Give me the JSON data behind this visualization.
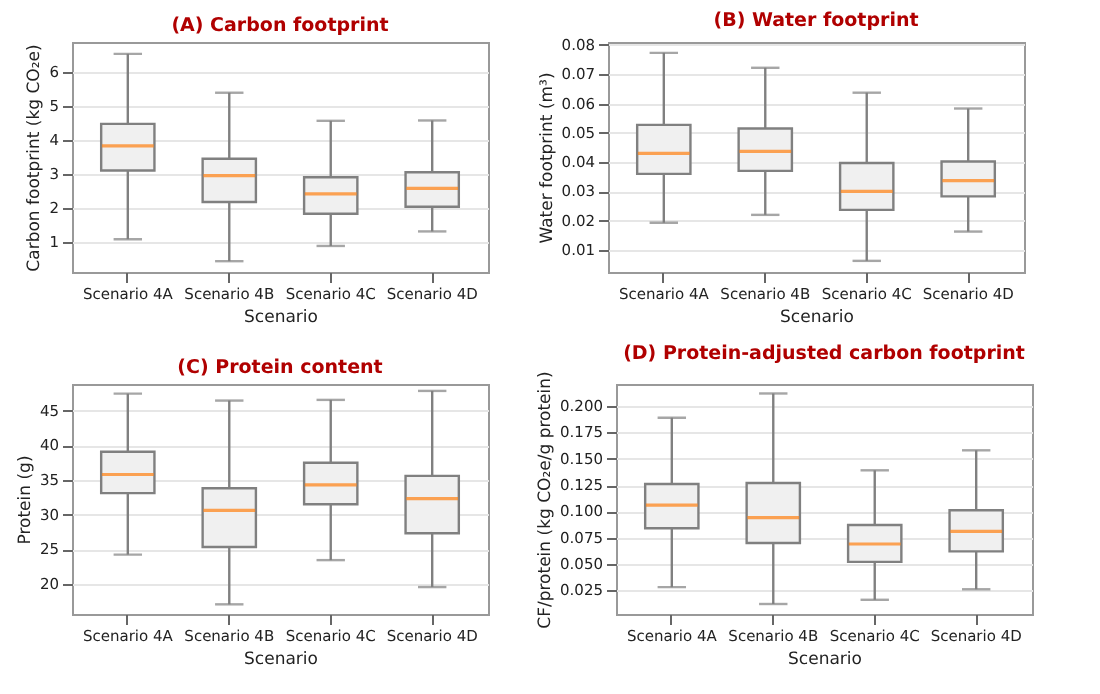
{
  "chart_data": [
    {
      "type": "box",
      "title": "(A) Carbon footprint",
      "xlabel": "Scenario",
      "ylabel": "Carbon footprint (kg CO₂e)",
      "categories": [
        "Scenario 4A",
        "Scenario 4B",
        "Scenario 4C",
        "Scenario 4D"
      ],
      "ylim": [
        0.1,
        6.9
      ],
      "yticks": [
        1,
        2,
        3,
        4,
        5,
        6
      ],
      "grid": "y",
      "series": [
        {
          "color": "#f0f0f0",
          "boxes": [
            {
              "low": 1.07,
              "q1": 3.1,
              "median": 3.83,
              "q3": 4.48,
              "high": 6.55
            },
            {
              "low": 0.42,
              "q1": 2.17,
              "median": 2.95,
              "q3": 3.45,
              "high": 5.4
            },
            {
              "low": 0.87,
              "q1": 1.82,
              "median": 2.41,
              "q3": 2.9,
              "high": 4.57
            },
            {
              "low": 1.3,
              "q1": 2.03,
              "median": 2.57,
              "q3": 3.05,
              "high": 4.58
            }
          ]
        }
      ]
    },
    {
      "type": "box",
      "title": "(B) Water footprint",
      "xlabel": "Scenario",
      "ylabel": "Water footprint (m³)",
      "categories": [
        "Scenario 4A",
        "Scenario 4B",
        "Scenario 4C",
        "Scenario 4D"
      ],
      "ylim": [
        0.0025,
        0.081
      ],
      "yticks": [
        0.01,
        0.02,
        0.03,
        0.04,
        0.05,
        0.06,
        0.07,
        0.08
      ],
      "grid": "y",
      "series": [
        {
          "color": "#f0f0f0",
          "boxes": [
            {
              "low": 0.0193,
              "q1": 0.036,
              "median": 0.043,
              "q3": 0.0527,
              "high": 0.0773
            },
            {
              "low": 0.022,
              "q1": 0.037,
              "median": 0.0437,
              "q3": 0.0515,
              "high": 0.0722
            },
            {
              "low": 0.0063,
              "q1": 0.0237,
              "median": 0.03,
              "q3": 0.0397,
              "high": 0.0637
            },
            {
              "low": 0.0163,
              "q1": 0.0283,
              "median": 0.0337,
              "q3": 0.0402,
              "high": 0.0583
            }
          ]
        }
      ]
    },
    {
      "type": "box",
      "title": "(C) Protein content",
      "xlabel": "Scenario",
      "ylabel": "Protein (g)",
      "categories": [
        "Scenario 4A",
        "Scenario 4B",
        "Scenario 4C",
        "Scenario 4D"
      ],
      "ylim": [
        15.6,
        48.9
      ],
      "yticks": [
        20,
        25,
        30,
        35,
        40,
        45
      ],
      "grid": "y",
      "series": [
        {
          "color": "#f0f0f0",
          "boxes": [
            {
              "low": 24.2,
              "q1": 33.1,
              "median": 35.8,
              "q3": 39.1,
              "high": 47.5
            },
            {
              "low": 17.0,
              "q1": 25.3,
              "median": 30.6,
              "q3": 33.8,
              "high": 46.5
            },
            {
              "low": 23.4,
              "q1": 31.5,
              "median": 34.3,
              "q3": 37.5,
              "high": 46.6
            },
            {
              "low": 19.5,
              "q1": 27.3,
              "median": 32.3,
              "q3": 35.6,
              "high": 47.9
            }
          ]
        }
      ]
    },
    {
      "type": "box",
      "title": "(D) Protein-adjusted carbon footprint",
      "xlabel": "Scenario",
      "ylabel": "CF/protein (kg CO₂e/g protein)",
      "categories": [
        "Scenario 4A",
        "Scenario 4B",
        "Scenario 4C",
        "Scenario 4D"
      ],
      "ylim": [
        0.0025,
        0.221
      ],
      "yticks": [
        0.025,
        {
          "value": 0.05,
          "label": "0.050"
        },
        0.075,
        {
          "value": 0.1,
          "label": "0.100"
        },
        0.125,
        {
          "value": 0.15,
          "label": "0.150"
        },
        0.175,
        {
          "value": 0.2,
          "label": "0.200"
        }
      ],
      "grid": "y",
      "series": [
        {
          "color": "#f0f0f0",
          "boxes": [
            {
              "low": 0.028,
              "q1": 0.084,
              "median": 0.106,
              "q3": 0.126,
              "high": 0.189
            },
            {
              "low": 0.012,
              "q1": 0.07,
              "median": 0.094,
              "q3": 0.127,
              "high": 0.212
            },
            {
              "low": 0.016,
              "q1": 0.052,
              "median": 0.069,
              "q3": 0.087,
              "high": 0.139
            },
            {
              "low": 0.026,
              "q1": 0.062,
              "median": 0.081,
              "q3": 0.101,
              "high": 0.158
            }
          ]
        }
      ]
    }
  ]
}
